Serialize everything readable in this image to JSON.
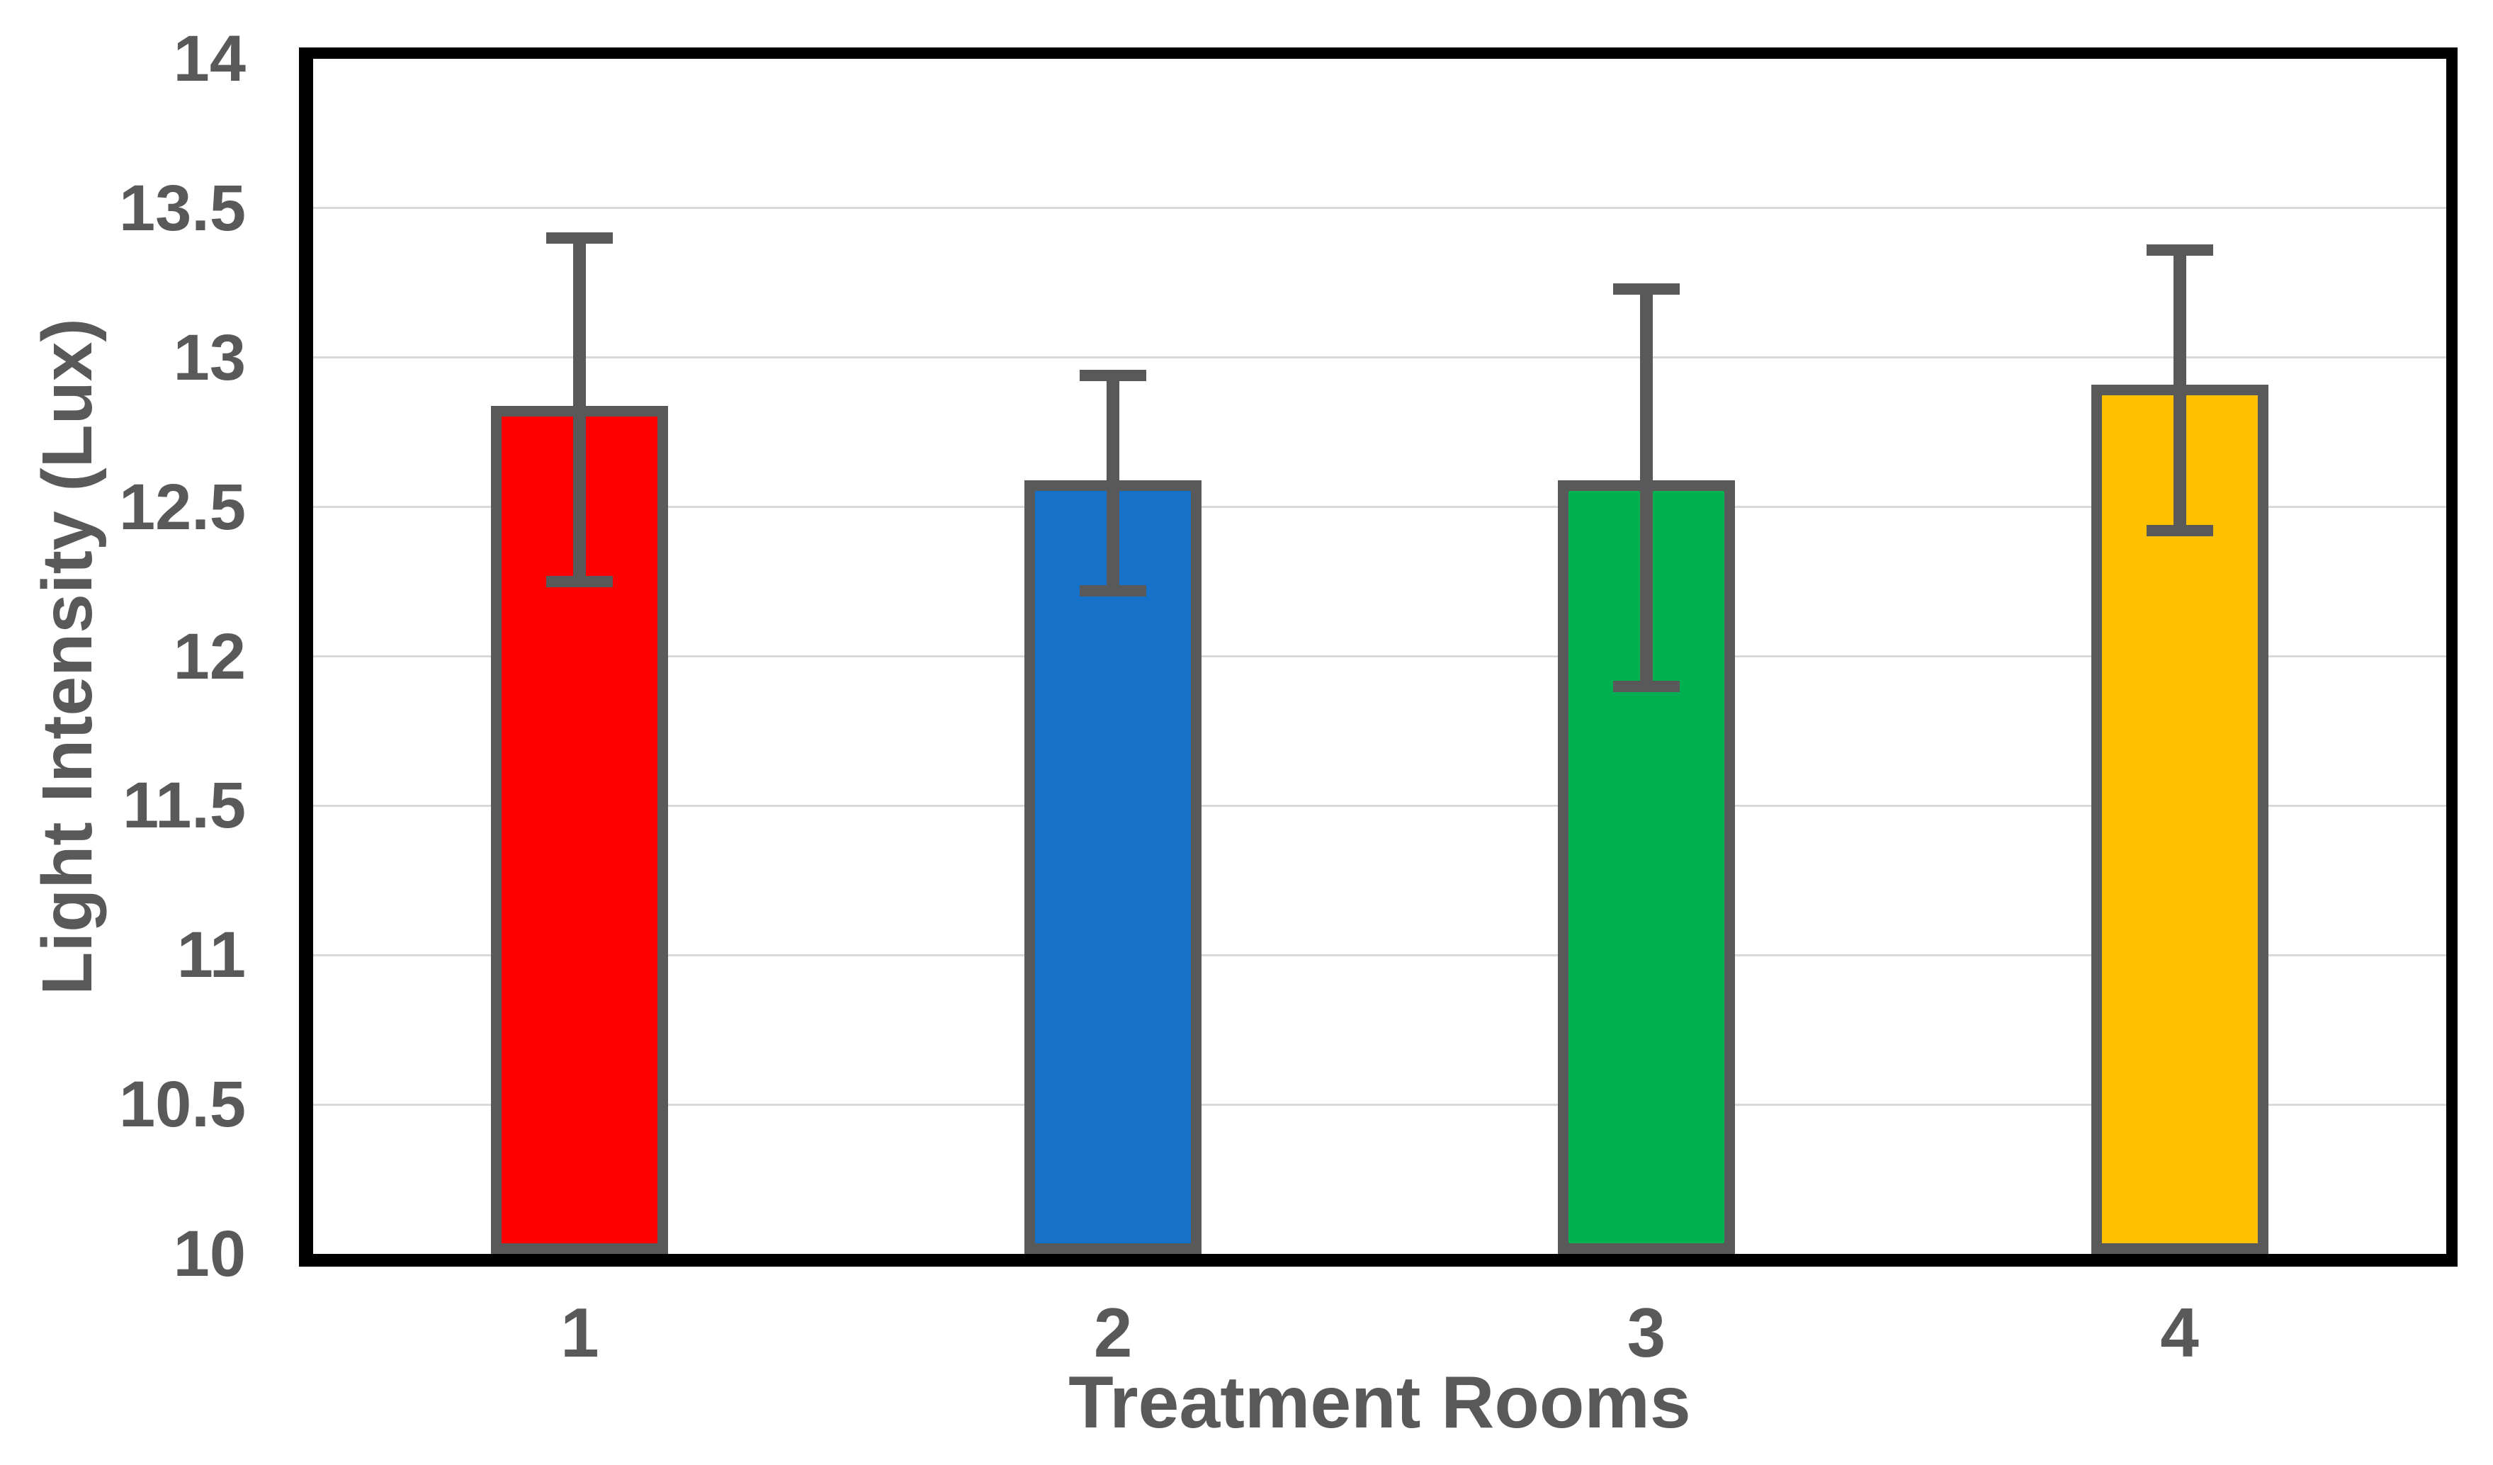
{
  "chart_data": {
    "type": "bar",
    "title": "",
    "categories": [
      "1",
      "2",
      "3",
      "4"
    ],
    "values": [
      12.82,
      12.57,
      12.57,
      12.89
    ],
    "error_high": [
      13.4,
      12.94,
      13.23,
      13.36
    ],
    "error_low": [
      12.25,
      12.22,
      11.9,
      12.42
    ],
    "bar_colors": [
      "#FF0000",
      "#1572C8",
      "#00B050",
      "#FFC000"
    ],
    "xlabel": "Treatment Rooms",
    "ylabel": "Light Intensity (Lux)",
    "ylim": [
      10,
      14
    ],
    "ytick_step": 0.5,
    "yticks": [
      "14",
      "13.5",
      "13",
      "12.5",
      "12",
      "11.5",
      "11",
      "10.5",
      "10"
    ],
    "grid": true,
    "legend": false
  },
  "colors": {
    "bar_border": "#595959",
    "error_bar": "#595959",
    "tick_text": "#595959",
    "gridline": "#D9D9D9",
    "axis_frame": "#000000",
    "background": "#FFFFFF"
  }
}
